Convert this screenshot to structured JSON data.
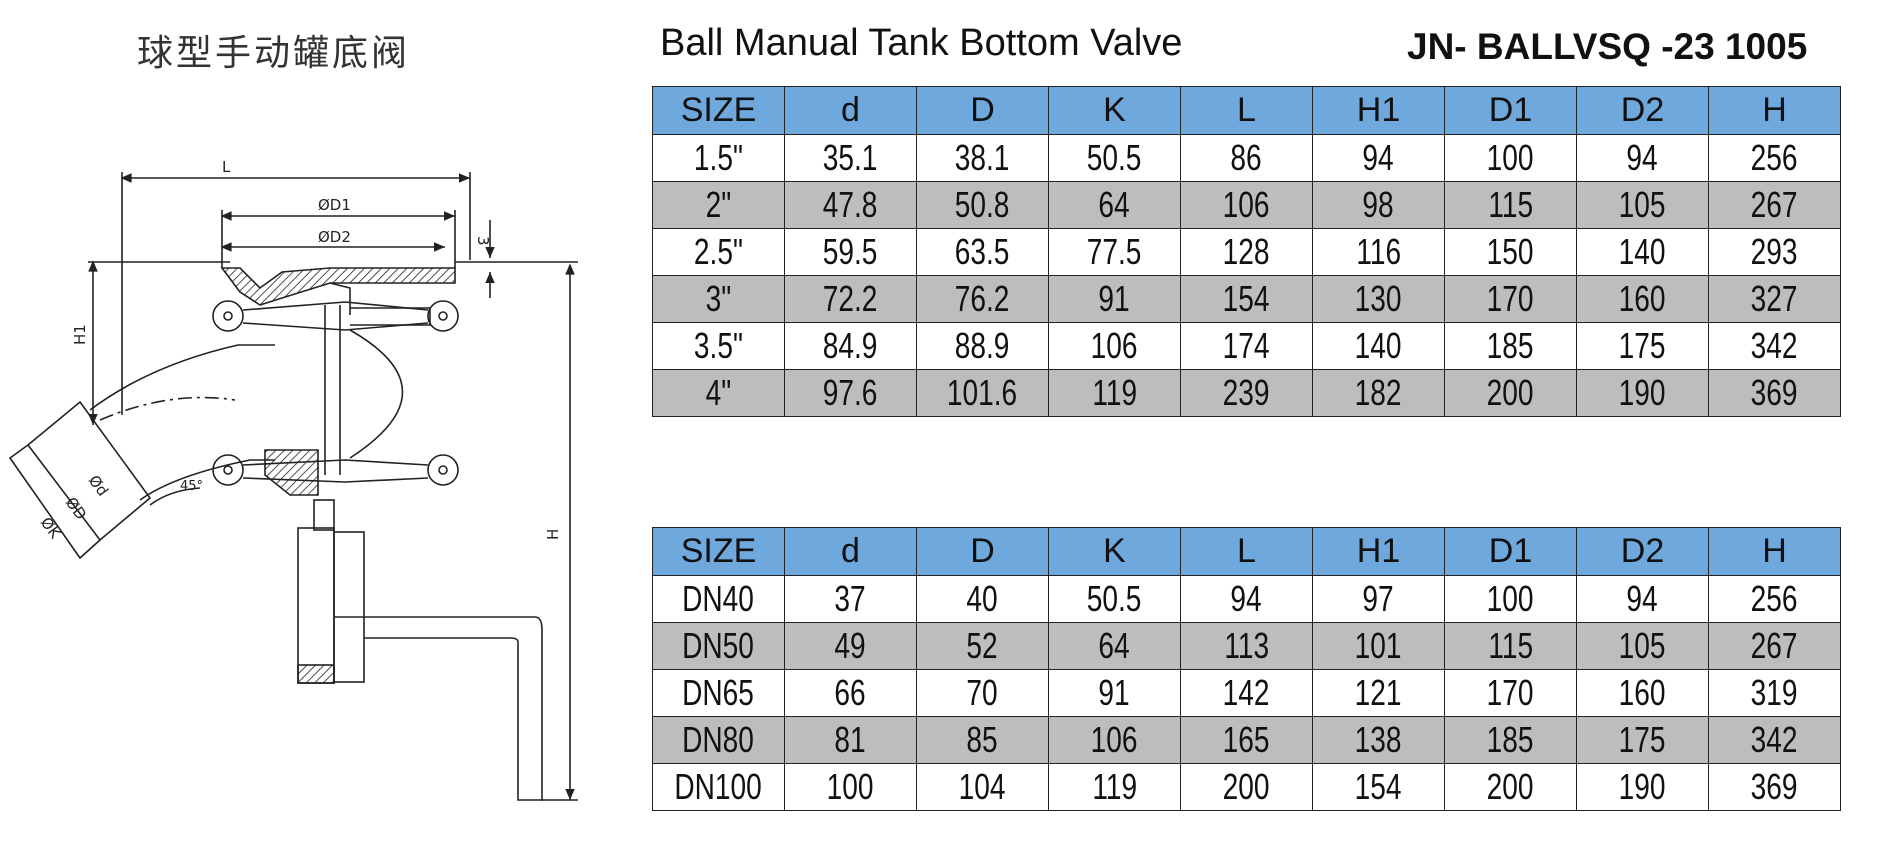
{
  "titles": {
    "chinese": "球型手动罐底阀",
    "english": "Ball Manual Tank Bottom Valve",
    "model": "JN- BALLVSQ -23 1005"
  },
  "drawing": {
    "labels": {
      "L": "L",
      "D1": "ØD1",
      "D2": "ØD2",
      "three": "3",
      "H1": "H1",
      "H": "H",
      "d": "Ød",
      "D": "ØD",
      "K": "ØK",
      "angle": "45°"
    }
  },
  "headers": [
    "SIZE",
    "d",
    "D",
    "K",
    "L",
    "H1",
    "D1",
    "D2",
    "H"
  ],
  "table_inch": [
    [
      "1.5\"",
      "35.1",
      "38.1",
      "50.5",
      "86",
      "94",
      "100",
      "94",
      "256"
    ],
    [
      "2\"",
      "47.8",
      "50.8",
      "64",
      "106",
      "98",
      "115",
      "105",
      "267"
    ],
    [
      "2.5\"",
      "59.5",
      "63.5",
      "77.5",
      "128",
      "116",
      "150",
      "140",
      "293"
    ],
    [
      "3\"",
      "72.2",
      "76.2",
      "91",
      "154",
      "130",
      "170",
      "160",
      "327"
    ],
    [
      "3.5\"",
      "84.9",
      "88.9",
      "106",
      "174",
      "140",
      "185",
      "175",
      "342"
    ],
    [
      "4\"",
      "97.6",
      "101.6",
      "119",
      "239",
      "182",
      "200",
      "190",
      "369"
    ]
  ],
  "table_dn": [
    [
      "DN40",
      "37",
      "40",
      "50.5",
      "94",
      "97",
      "100",
      "94",
      "256"
    ],
    [
      "DN50",
      "49",
      "52",
      "64",
      "113",
      "101",
      "115",
      "105",
      "267"
    ],
    [
      "DN65",
      "66",
      "70",
      "91",
      "142",
      "121",
      "170",
      "160",
      "319"
    ],
    [
      "DN80",
      "81",
      "85",
      "106",
      "165",
      "138",
      "185",
      "175",
      "342"
    ],
    [
      "DN100",
      "100",
      "104",
      "119",
      "200",
      "154",
      "200",
      "190",
      "369"
    ]
  ],
  "colors": {
    "header_bg": "#6ea8dc",
    "alt_row_bg": "#bdbdbd",
    "line": "#222222"
  }
}
